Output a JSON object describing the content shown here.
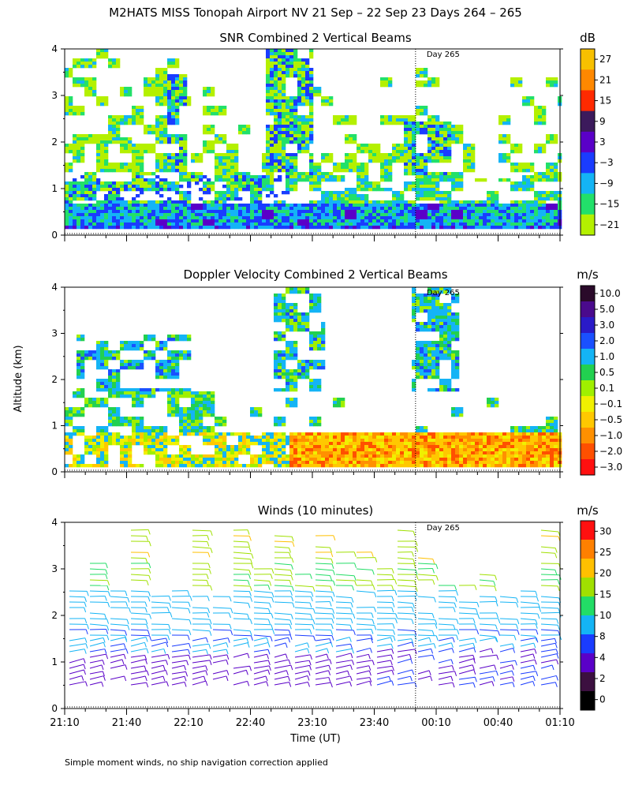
{
  "page_title": "M2HATS MISS Tonopah Airport NV  21 Sep – 22 Sep 23 Days 264 – 265",
  "y_axis_label": "Altitude (km)",
  "footer_note": "Simple moment winds, no ship navigation correction applied",
  "day_marker_label": "Day 265",
  "colors": {
    "white": "#ffffff",
    "black": "#000000"
  },
  "chart_data": [
    {
      "id": "snr",
      "type": "heatmap",
      "title": "SNR Combined 2 Vertical Beams",
      "unit": "dB",
      "ylim": [
        0,
        4
      ],
      "y_ticks": [
        0,
        1,
        2,
        3,
        4
      ],
      "x_range_minutes": [
        0,
        240
      ],
      "day_marker_minutes": 170,
      "colorbar_labels": [
        "27",
        "21",
        "15",
        "9",
        "3",
        "−3",
        "−9",
        "−15",
        "−21"
      ],
      "colorbar_colors": [
        "#f7c000",
        "#ff8800",
        "#ff2a00",
        "#3c1a5c",
        "#5a00c8",
        "#1a3cff",
        "#14b4f5",
        "#22e06a",
        "#b4f000"
      ]
    },
    {
      "id": "doppler",
      "type": "heatmap",
      "title": "Doppler Velocity Combined 2 Vertical Beams",
      "unit": "m/s",
      "ylim": [
        0,
        4
      ],
      "y_ticks": [
        0,
        1,
        2,
        3,
        4
      ],
      "x_range_minutes": [
        0,
        240
      ],
      "day_marker_minutes": 170,
      "colorbar_labels": [
        "10.0",
        "5.0",
        "3.0",
        "2.0",
        "1.0",
        "0.5",
        "0.1",
        "−0.1",
        "−0.5",
        "−1.0",
        "−2.0",
        "−3.0"
      ],
      "colorbar_colors": [
        "#2a0a2a",
        "#4a0a8c",
        "#2a1ac8",
        "#1a50ff",
        "#14b4f5",
        "#22d050",
        "#a0f000",
        "#f0f000",
        "#ffc800",
        "#ff9000",
        "#ff5000",
        "#ff1010"
      ]
    },
    {
      "id": "winds",
      "type": "scatter",
      "title": "Winds (10 minutes)",
      "unit": "m/s",
      "ylim": [
        0,
        4
      ],
      "y_ticks": [
        0,
        1,
        2,
        3,
        4
      ],
      "x_range_minutes": [
        0,
        240
      ],
      "x_ticks": [
        "21:10",
        "21:40",
        "22:10",
        "22:40",
        "23:10",
        "23:40",
        "00:10",
        "00:40",
        "01:10"
      ],
      "xlabel": "Time (UT)",
      "day_marker_minutes": 170,
      "colorbar_labels": [
        "30",
        "25",
        "20",
        "15",
        "10",
        "8",
        "4",
        "2",
        "0"
      ],
      "colorbar_colors": [
        "#ff1010",
        "#ff8000",
        "#ffc000",
        "#a0e000",
        "#22dd66",
        "#14b4f5",
        "#1a3cff",
        "#5a00c8",
        "#3c1040",
        "#000000"
      ]
    }
  ]
}
